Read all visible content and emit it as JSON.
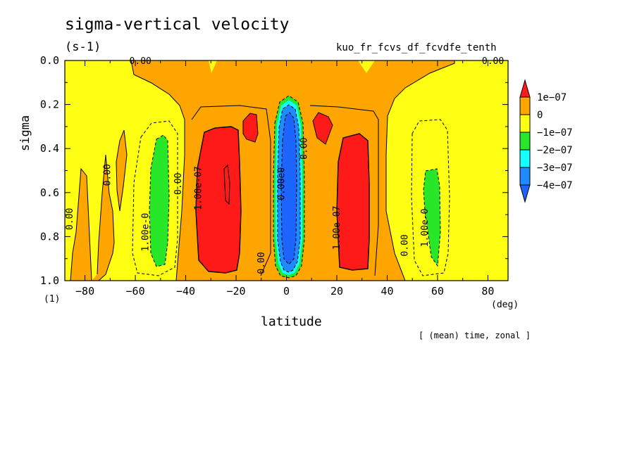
{
  "chart_data": {
    "type": "heatmap",
    "title": "sigma-vertical velocity",
    "units": "(s-1)",
    "run_name": "kuo_fr_fcvs_df_fcvdfe_tenth",
    "xlabel": "latitude",
    "ylabel": "sigma",
    "x_unit": "(deg)",
    "y_unit": "(1)",
    "annotation": "[ (mean) time, zonal ]",
    "xlim": [
      -88,
      88
    ],
    "ylim": [
      1.0,
      0.0
    ],
    "x_ticks": [
      -80,
      -60,
      -40,
      -20,
      0,
      20,
      40,
      60,
      80
    ],
    "y_ticks": [
      0.0,
      0.2,
      0.4,
      0.6,
      0.8,
      1.0
    ],
    "x_tick_labels": [
      "−80",
      "−60",
      "−40",
      "−20",
      "0",
      "20",
      "40",
      "60",
      "80"
    ],
    "y_tick_labels": [
      "0.0",
      "0.2",
      "0.4",
      "0.6",
      "0.8",
      "1.0"
    ],
    "colorbar": {
      "labels": [
        "1e−07",
        "0",
        "−1e−07",
        "−2e−07",
        "−3e−07",
        "−4e−07"
      ],
      "colors": [
        "#ff1a1a",
        "#ffa500",
        "#ffff14",
        "#28e628",
        "#14ffff",
        "#1e8cff",
        "#1e64ff"
      ]
    },
    "contour_labels": [
      {
        "text": "0.00",
        "lat": -58,
        "sigma": 0.0
      },
      {
        "text": "0.00",
        "lat": 82,
        "sigma": 0.0
      },
      {
        "text": "0.00",
        "lat": -86,
        "sigma": 0.72
      },
      {
        "text": "0.00",
        "lat": -71,
        "sigma": 0.52
      },
      {
        "text": "0.00",
        "lat": -43,
        "sigma": 0.56
      },
      {
        "text": "0.00",
        "lat": -10,
        "sigma": 0.92
      },
      {
        "text": "0.00",
        "lat": 7,
        "sigma": 0.4
      },
      {
        "text": "0.00",
        "lat": 47,
        "sigma": 0.84
      },
      {
        "text": "1.00e-07",
        "lat": -35,
        "sigma": 0.58
      },
      {
        "text": "1.00e-07",
        "lat": 20,
        "sigma": 0.76
      },
      {
        "text": "1.00e-0",
        "lat": -56,
        "sigma": 0.78
      },
      {
        "text": "1.00e-0",
        "lat": 55,
        "sigma": 0.76
      },
      {
        "text": "0.00e0",
        "lat": -2,
        "sigma": 0.56
      }
    ]
  }
}
